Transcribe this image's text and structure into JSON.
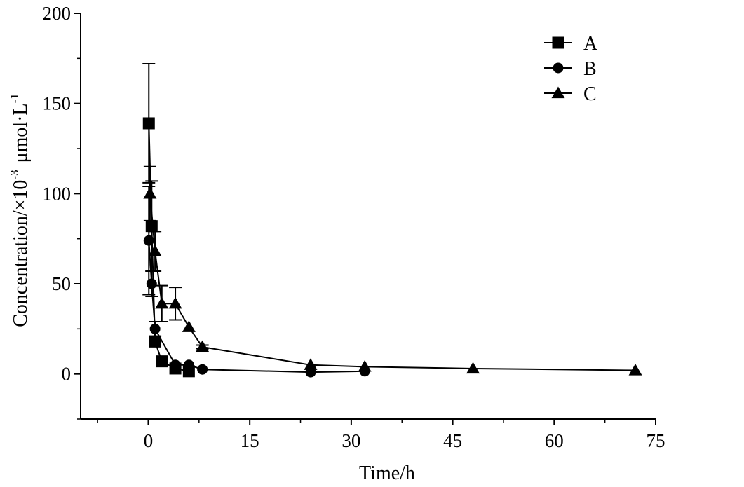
{
  "chart_data": {
    "type": "line",
    "title": "",
    "xlabel": "Time/h",
    "ylabel": {
      "base": "Concentration/×10",
      "exponent": "-3",
      "unit": "μmol·L",
      "unit_exponent": "-1"
    },
    "xlim": [
      -10,
      75
    ],
    "ylim": [
      -25,
      200
    ],
    "xticks": [
      0,
      15,
      30,
      45,
      60,
      75
    ],
    "yticks": [
      0,
      50,
      100,
      150,
      200
    ],
    "xtick_labels": [
      "0",
      "15",
      "30",
      "45",
      "60",
      "75"
    ],
    "ytick_labels": [
      "0",
      "50",
      "100",
      "150",
      "200"
    ],
    "grid": false,
    "legend_position": "top-right",
    "series": [
      {
        "name": "A",
        "marker": "square",
        "x": [
          0.083,
          0.5,
          1,
          2,
          4,
          6
        ],
        "y": [
          139,
          82,
          18,
          7,
          3,
          1.5
        ],
        "err": [
          33,
          25,
          0,
          0,
          0,
          0
        ]
      },
      {
        "name": "B",
        "marker": "circle",
        "x": [
          0.083,
          0.5,
          1,
          4,
          6,
          8,
          24,
          32
        ],
        "y": [
          74,
          50,
          25,
          5,
          5,
          2.5,
          1,
          1.5
        ],
        "err": [
          30,
          7,
          4,
          0,
          0,
          0,
          0,
          0
        ]
      },
      {
        "name": "C",
        "marker": "triangle",
        "x": [
          0.25,
          1,
          2,
          4,
          6,
          8,
          24,
          32,
          48,
          72
        ],
        "y": [
          100,
          68,
          39,
          39,
          26,
          15,
          5,
          4,
          3,
          2
        ],
        "err": [
          15,
          11,
          10,
          9,
          0,
          1,
          0,
          0,
          0,
          0
        ]
      }
    ]
  }
}
